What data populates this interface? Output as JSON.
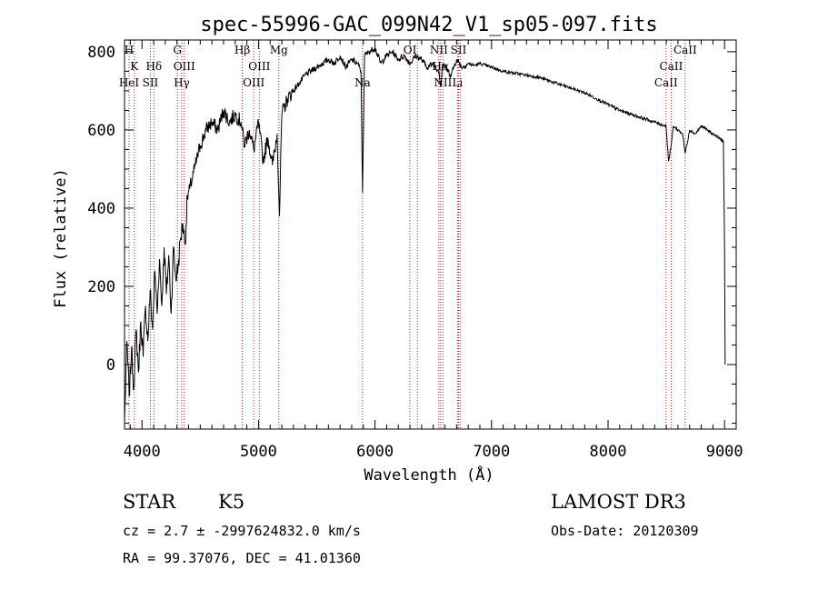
{
  "chart_data": {
    "type": "line",
    "title": "spec-55996-GAC_099N42_V1_sp05-097.fits",
    "xlabel": "Wavelength (Å)",
    "ylabel": "Flux (relative)",
    "xlim": [
      3850,
      9100
    ],
    "ylim": [
      -165,
      830
    ],
    "x_ticks": [
      4000,
      5000,
      6000,
      7000,
      8000,
      9000
    ],
    "x_tick_labels": [
      "4000",
      "5000",
      "6000",
      "7000",
      "8000",
      "9000"
    ],
    "y_ticks": [
      0,
      200,
      400,
      600,
      800
    ],
    "y_tick_labels": [
      "0",
      "200",
      "400",
      "600",
      "800"
    ],
    "grid": false,
    "series": [
      {
        "name": "spectrum",
        "x": [
          3850,
          3870,
          3890,
          3910,
          3930,
          3950,
          3970,
          3990,
          4010,
          4030,
          4050,
          4070,
          4090,
          4110,
          4130,
          4150,
          4170,
          4190,
          4210,
          4230,
          4250,
          4270,
          4290,
          4310,
          4330,
          4350,
          4370,
          4390,
          4410,
          4450,
          4500,
          4550,
          4600,
          4650,
          4700,
          4750,
          4800,
          4850,
          4880,
          4920,
          4960,
          5000,
          5040,
          5080,
          5120,
          5160,
          5180,
          5200,
          5250,
          5300,
          5350,
          5400,
          5450,
          5500,
          5550,
          5600,
          5650,
          5700,
          5750,
          5800,
          5850,
          5880,
          5893,
          5910,
          5950,
          6000,
          6050,
          6100,
          6150,
          6200,
          6250,
          6300,
          6350,
          6400,
          6450,
          6500,
          6550,
          6563,
          6580,
          6650,
          6700,
          6750,
          6800,
          6850,
          6900,
          7000,
          7100,
          7200,
          7300,
          7400,
          7500,
          7600,
          7700,
          7800,
          7900,
          8000,
          8100,
          8200,
          8300,
          8400,
          8498,
          8520,
          8542,
          8560,
          8600,
          8640,
          8662,
          8700,
          8750,
          8800,
          8850,
          8900,
          8950,
          8990,
          9000,
          9005
        ],
        "y": [
          -150,
          60,
          -80,
          40,
          -60,
          90,
          -20,
          110,
          20,
          150,
          60,
          190,
          90,
          240,
          130,
          270,
          150,
          300,
          180,
          280,
          130,
          300,
          220,
          250,
          320,
          360,
          310,
          430,
          450,
          500,
          560,
          600,
          620,
          600,
          650,
          620,
          640,
          620,
          560,
          600,
          550,
          620,
          520,
          580,
          510,
          590,
          380,
          640,
          680,
          700,
          720,
          740,
          750,
          760,
          770,
          780,
          770,
          790,
          760,
          780,
          770,
          750,
          440,
          790,
          800,
          810,
          770,
          790,
          800,
          780,
          790,
          770,
          790,
          780,
          760,
          770,
          750,
          710,
          770,
          740,
          780,
          760,
          770,
          765,
          770,
          760,
          750,
          745,
          740,
          735,
          725,
          715,
          705,
          695,
          680,
          665,
          650,
          640,
          630,
          620,
          610,
          520,
          560,
          610,
          600,
          590,
          540,
          600,
          590,
          610,
          600,
          590,
          580,
          570,
          300,
          0
        ]
      }
    ],
    "line_markers": [
      {
        "label": "H",
        "wavelength": 3889,
        "row": 1
      },
      {
        "label": "K",
        "wavelength": 3934,
        "row": 2
      },
      {
        "label": "HeI",
        "wavelength": 3889,
        "row": 3
      },
      {
        "label": "SII",
        "wavelength": 4072,
        "row": 3
      },
      {
        "label": "Hδ",
        "wavelength": 4102,
        "row": 2
      },
      {
        "label": "G",
        "wavelength": 4304,
        "row": 1
      },
      {
        "label": "OIII",
        "wavelength": 4363,
        "row": 2
      },
      {
        "label": "Hγ",
        "wavelength": 4341,
        "row": 3
      },
      {
        "label": "Hβ",
        "wavelength": 4861,
        "row": 1
      },
      {
        "label": "OIII",
        "wavelength": 5007,
        "row": 2
      },
      {
        "label": "OIII",
        "wavelength": 4959,
        "row": 3
      },
      {
        "label": "Mg",
        "wavelength": 5175,
        "row": 1
      },
      {
        "label": "Na",
        "wavelength": 5893,
        "row": 3
      },
      {
        "label": "OI",
        "wavelength": 6300,
        "row": 1
      },
      {
        "label": "NII",
        "wavelength": 6548,
        "row": 1
      },
      {
        "label": "SII",
        "wavelength": 6717,
        "row": 1
      },
      {
        "label": "Hα",
        "wavelength": 6563,
        "row": 2
      },
      {
        "label": "NII",
        "wavelength": 6583,
        "row": 3
      },
      {
        "label": "Li",
        "wavelength": 6708,
        "row": 3
      },
      {
        "label": "CaII",
        "wavelength": 8662,
        "row": 1
      },
      {
        "label": "CaII",
        "wavelength": 8542,
        "row": 2
      },
      {
        "label": "CaII",
        "wavelength": 8498,
        "row": 3
      }
    ],
    "extra_marker_lines": [
      6364,
      6716,
      6731
    ]
  },
  "info": {
    "object_class": "STAR",
    "subclass": "K5",
    "survey": "LAMOST DR3",
    "cz": "cz = 2.7 ± -2997624832.0 km/s",
    "obs_date": "Obs-Date: 20120309",
    "coords": "RA =  99.37076, DEC =  41.01360"
  }
}
